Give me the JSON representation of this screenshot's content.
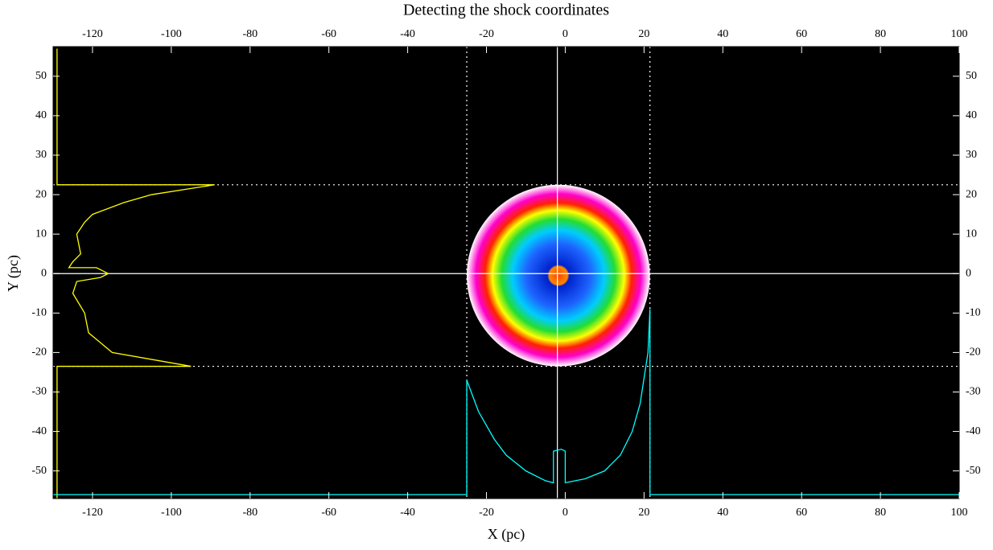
{
  "chart_data": {
    "type": "line",
    "title": "Detecting the shock coordinates",
    "x_label": "X (pc)",
    "y_label": "Y (pc)",
    "xlim": [
      -130,
      100
    ],
    "ylim": [
      -57,
      57.5
    ],
    "xticks": [
      -120,
      -100,
      -80,
      -60,
      -40,
      -20,
      0,
      20,
      40,
      60,
      80,
      100
    ],
    "yticks": [
      -50,
      -40,
      -30,
      -20,
      -10,
      0,
      10,
      20,
      30,
      40,
      50
    ],
    "background": "#000000",
    "shock_bounds": {
      "x": [
        -25,
        21.5
      ],
      "y": [
        -23.5,
        22.5
      ]
    },
    "center": {
      "x": -2,
      "y": 0
    },
    "series": [
      {
        "color": "#ffff00",
        "x": [
          -129,
          -129,
          -89,
          -105,
          -112,
          -120,
          -122,
          -124,
          -123,
          -125,
          -126,
          -119,
          -117,
          -116,
          -118,
          -124,
          -125,
          -122,
          -121,
          -115,
          -95,
          -129,
          -129
        ],
        "values": [
          57,
          22.5,
          22.5,
          20,
          18,
          15,
          13,
          10,
          5,
          3,
          1.5,
          1.5,
          0.5,
          0,
          -1,
          -2,
          -5,
          -10,
          -15,
          -20,
          -23.5,
          -23.5,
          -57
        ]
      },
      {
        "color": "#00ffff",
        "x": [
          -130,
          -25,
          -25,
          -22,
          -18,
          -15,
          -10,
          -5,
          -3,
          -3,
          -1,
          0,
          0,
          5,
          10,
          14,
          17,
          19,
          21,
          21.5,
          21.5,
          100
        ],
        "values": [
          -56,
          -56,
          -27,
          -35,
          -42,
          -46,
          -50,
          -52.5,
          -53,
          -45,
          -44.5,
          -45,
          -53,
          -52,
          -50,
          -46,
          -40,
          -33,
          -20,
          -9,
          -56,
          -56
        ]
      }
    ]
  }
}
